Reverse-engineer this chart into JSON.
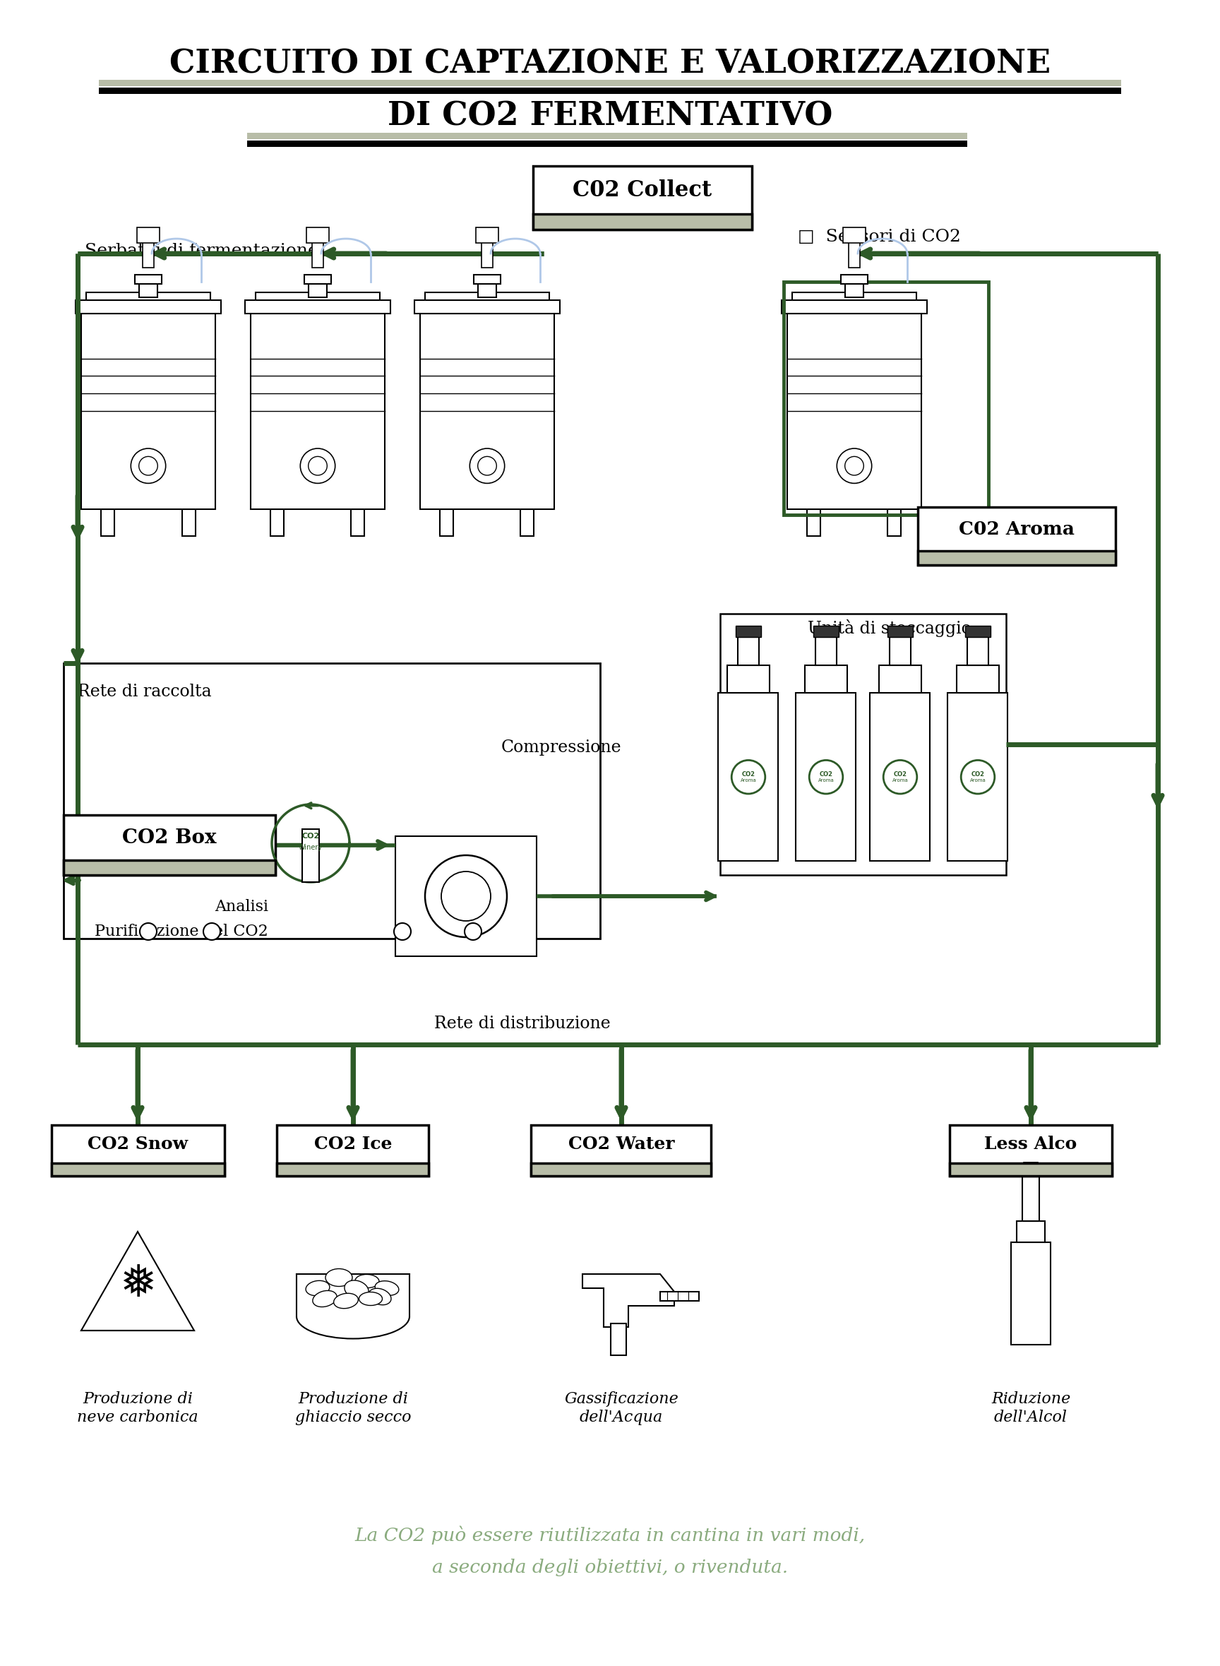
{
  "bg": "#ffffff",
  "DG": "#2d5a27",
  "MG": "#8aab7e",
  "GB": "#b8bda8",
  "title1": "CIRCUITO DI CAPTAZIONE E VALORIZZAZIONE",
  "title2": "DI CO2 FERMENTATIVO",
  "lbl_collect": "C02 Collect",
  "lbl_aroma": "C02 Aroma",
  "lbl_co2box": "CO2 Box",
  "lbl_snow": "CO2 Snow",
  "lbl_ice": "CO2 Ice",
  "lbl_water": "CO2 Water",
  "lbl_alco": "Less Alco",
  "lbl_serbatoi": "Serbatoi di fermentazione",
  "lbl_sensori": "□  Sensori di CO2",
  "lbl_rete_r": "Rete di raccolta",
  "lbl_comp": "Compressione",
  "lbl_unita": "Unità di stoccaggio",
  "lbl_analisi": "Analisi",
  "lbl_purif": "Purificazione del CO2",
  "lbl_rete_d": "Rete di distribuzione",
  "sub_snow": "Produzione di\nneve carbonica",
  "sub_ice": "Produzione di\nghiaccio secco",
  "sub_water": "Gassificazione\ndell'Acqua",
  "sub_alco": "Riduzione\ndell'Alcol",
  "footer1": "La CO2 può essere riutilizzata in cantina in vari modi,",
  "footer2": "a seconda degli obiettivi, o rivenduta.",
  "co2_winery_text": "CO2\nWinery"
}
